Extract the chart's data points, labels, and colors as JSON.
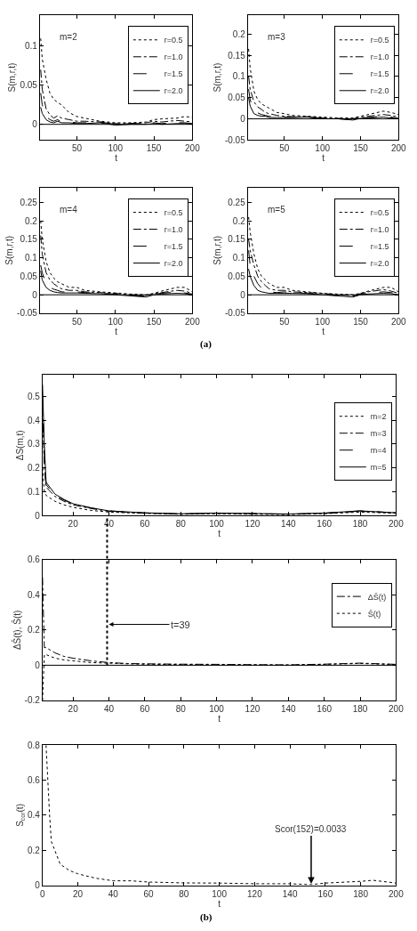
{
  "chart_data": [
    {
      "type": "line",
      "title": "m=2",
      "ylabel": "S(m,r,t)",
      "xlabel": "t",
      "xlim": [
        2,
        200
      ],
      "ylim": [
        -0.02,
        0.14
      ],
      "xticks": [
        50,
        100,
        150,
        200
      ],
      "yticks": [
        0,
        0.05,
        0.1
      ],
      "legend": "top right",
      "x": [
        3,
        5,
        10,
        15,
        20,
        25,
        30,
        40,
        50,
        60,
        80,
        100,
        120,
        140,
        150,
        160,
        180,
        190,
        200
      ],
      "series": [
        {
          "name": "r=0.5",
          "color": "#000000",
          "line_style": "dotted",
          "values": [
            0.11,
            0.084,
            0.058,
            0.04,
            0.032,
            0.028,
            0.025,
            0.015,
            0.01,
            0.008,
            0.004,
            0.002,
            0.002,
            0.003,
            0.006,
            0.007,
            0.008,
            0.01,
            0.009
          ]
        },
        {
          "name": "r=1.0",
          "color": "#000000",
          "line_style": "dashdot",
          "values": [
            0.07,
            0.045,
            0.02,
            0.012,
            0.008,
            0.011,
            0.008,
            0.006,
            0.004,
            0.004,
            0.003,
            0.001,
            0.001,
            0.002,
            0.004,
            0.003,
            0.005,
            0.004,
            0.003
          ]
        },
        {
          "name": "r=1.5",
          "color": "#000000",
          "line_style": "dashed",
          "values": [
            0.04,
            0.025,
            0.01,
            0.006,
            0.004,
            0.006,
            0.003,
            0.003,
            0.002,
            0.002,
            0.003,
            0.0,
            0.001,
            0.001,
            0.002,
            0.001,
            0.002,
            0.002,
            0.001
          ]
        },
        {
          "name": "r=2.0",
          "color": "#000000",
          "line_style": "solid",
          "values": [
            0.022,
            0.014,
            0.006,
            0.003,
            0.002,
            0.004,
            0.002,
            0.002,
            0.001,
            0.001,
            0.002,
            -0.001,
            0.0,
            0.0,
            0.001,
            0.0,
            0.001,
            0.001,
            0.0
          ]
        }
      ],
      "ref_lines": [
        {
          "axis": "y",
          "value": 0,
          "color": "#000000",
          "line_style": "solid"
        }
      ]
    },
    {
      "type": "line",
      "title": "m=3",
      "ylabel": "S(m,r,t)",
      "xlabel": "t",
      "xlim": [
        2,
        200
      ],
      "ylim": [
        -0.05,
        0.245
      ],
      "xticks": [
        50,
        100,
        150,
        200
      ],
      "yticks": [
        -0.05,
        0,
        0.05,
        0.1,
        0.15,
        0.2
      ],
      "legend": "top right",
      "x": [
        3,
        5,
        10,
        15,
        20,
        25,
        30,
        40,
        50,
        60,
        80,
        100,
        120,
        140,
        150,
        160,
        180,
        190,
        200
      ],
      "series": [
        {
          "name": "r=0.5",
          "color": "#000000",
          "line_style": "dotted",
          "values": [
            0.165,
            0.12,
            0.065,
            0.045,
            0.035,
            0.03,
            0.025,
            0.015,
            0.012,
            0.008,
            0.006,
            0.004,
            0.002,
            0.002,
            0.006,
            0.01,
            0.018,
            0.015,
            0.01
          ]
        },
        {
          "name": "r=1.0",
          "color": "#000000",
          "line_style": "dashdot",
          "values": [
            0.1,
            0.07,
            0.04,
            0.028,
            0.022,
            0.015,
            0.012,
            0.008,
            0.006,
            0.005,
            0.005,
            0.002,
            0.001,
            0.0,
            0.004,
            0.006,
            0.01,
            0.008,
            0.004
          ]
        },
        {
          "name": "r=1.5",
          "color": "#000000",
          "line_style": "dashed",
          "values": [
            0.07,
            0.045,
            0.02,
            0.014,
            0.01,
            0.008,
            0.006,
            0.005,
            0.004,
            0.004,
            0.005,
            0.001,
            0.0,
            -0.002,
            0.002,
            0.003,
            0.006,
            0.004,
            0.001
          ]
        },
        {
          "name": "r=2.0",
          "color": "#000000",
          "line_style": "solid",
          "values": [
            0.05,
            0.03,
            0.012,
            0.008,
            0.006,
            0.006,
            0.003,
            0.003,
            0.003,
            0.003,
            0.004,
            0.0,
            0.0,
            -0.003,
            0.001,
            0.002,
            0.004,
            0.002,
            0.0
          ]
        }
      ],
      "ref_lines": [
        {
          "axis": "y",
          "value": 0,
          "color": "#000000",
          "line_style": "solid"
        }
      ]
    },
    {
      "type": "line",
      "title": "m=4",
      "ylabel": "S(m,r,t)",
      "xlabel": "t",
      "xlim": [
        2,
        200
      ],
      "ylim": [
        -0.05,
        0.29
      ],
      "xticks": [
        50,
        100,
        150,
        200
      ],
      "yticks": [
        -0.05,
        0,
        0.05,
        0.1,
        0.15,
        0.2,
        0.25
      ],
      "legend": "top right",
      "x": [
        3,
        5,
        10,
        15,
        20,
        25,
        30,
        40,
        50,
        60,
        80,
        100,
        120,
        140,
        150,
        160,
        180,
        190,
        200
      ],
      "series": [
        {
          "name": "r=0.5",
          "color": "#000000",
          "line_style": "dotted",
          "values": [
            0.2,
            0.15,
            0.09,
            0.06,
            0.045,
            0.035,
            0.03,
            0.02,
            0.02,
            0.012,
            0.008,
            0.005,
            0.002,
            0.0,
            0.004,
            0.01,
            0.02,
            0.02,
            0.008
          ]
        },
        {
          "name": "r=1.0",
          "color": "#000000",
          "line_style": "dashdot",
          "values": [
            0.16,
            0.11,
            0.06,
            0.04,
            0.03,
            0.022,
            0.016,
            0.012,
            0.012,
            0.008,
            0.006,
            0.004,
            0.0,
            -0.002,
            0.003,
            0.006,
            0.012,
            0.01,
            0.004
          ]
        },
        {
          "name": "r=1.5",
          "color": "#000000",
          "line_style": "dashed",
          "values": [
            0.08,
            0.06,
            0.03,
            0.02,
            0.015,
            0.012,
            0.008,
            0.007,
            0.008,
            0.006,
            0.004,
            0.002,
            -0.002,
            -0.004,
            0.002,
            0.004,
            0.008,
            0.005,
            0.002
          ]
        },
        {
          "name": "r=2.0",
          "color": "#000000",
          "line_style": "solid",
          "values": [
            0.065,
            0.04,
            0.02,
            0.012,
            0.008,
            0.006,
            0.005,
            0.005,
            0.005,
            0.004,
            0.003,
            0.0,
            -0.003,
            -0.006,
            0.0,
            0.002,
            0.004,
            0.003,
            0.0
          ]
        }
      ],
      "ref_lines": [
        {
          "axis": "y",
          "value": 0,
          "color": "#000000",
          "line_style": "solid"
        }
      ]
    },
    {
      "type": "line",
      "title": "m=5",
      "ylabel": "S(m,r,t)",
      "xlabel": "t",
      "xlim": [
        2,
        200
      ],
      "ylim": [
        -0.05,
        0.29
      ],
      "xticks": [
        50,
        100,
        150,
        200
      ],
      "yticks": [
        -0.05,
        0,
        0.05,
        0.1,
        0.15,
        0.2,
        0.25
      ],
      "legend": "top right",
      "x": [
        3,
        5,
        10,
        15,
        20,
        25,
        30,
        40,
        50,
        60,
        80,
        100,
        120,
        140,
        150,
        160,
        180,
        190,
        200
      ],
      "series": [
        {
          "name": "r=0.5",
          "color": "#000000",
          "line_style": "dotted",
          "values": [
            0.21,
            0.17,
            0.11,
            0.07,
            0.05,
            0.04,
            0.03,
            0.02,
            0.02,
            0.012,
            0.008,
            0.004,
            0.002,
            0.0,
            0.004,
            0.01,
            0.02,
            0.02,
            0.008
          ]
        },
        {
          "name": "r=1.0",
          "color": "#000000",
          "line_style": "dashdot",
          "values": [
            0.15,
            0.12,
            0.08,
            0.05,
            0.035,
            0.025,
            0.016,
            0.012,
            0.012,
            0.008,
            0.006,
            0.004,
            0.0,
            -0.002,
            0.003,
            0.008,
            0.014,
            0.01,
            0.004
          ]
        },
        {
          "name": "r=1.5",
          "color": "#000000",
          "line_style": "dashed",
          "values": [
            0.12,
            0.08,
            0.05,
            0.03,
            0.018,
            0.012,
            0.008,
            0.006,
            0.008,
            0.006,
            0.004,
            0.002,
            -0.002,
            -0.004,
            0.002,
            0.004,
            0.008,
            0.006,
            0.002
          ]
        },
        {
          "name": "r=2.0",
          "color": "#000000",
          "line_style": "solid",
          "values": [
            0.07,
            0.05,
            0.025,
            0.012,
            0.008,
            0.006,
            0.004,
            0.004,
            0.004,
            0.004,
            0.003,
            0.0,
            -0.003,
            -0.006,
            0.0,
            0.002,
            0.004,
            0.003,
            0.0
          ]
        }
      ],
      "ref_lines": [
        {
          "axis": "y",
          "value": 0,
          "color": "#000000",
          "line_style": "solid"
        }
      ],
      "annotations": [
        "(a)"
      ]
    },
    {
      "type": "line",
      "ylabel": "ΔS(m,t)",
      "xlabel": "t",
      "xlim": [
        3,
        200
      ],
      "ylim": [
        0,
        0.59
      ],
      "xticks": [
        20,
        40,
        60,
        80,
        100,
        120,
        140,
        160,
        180,
        200
      ],
      "yticks": [
        0,
        0.1,
        0.2,
        0.3,
        0.4,
        0.5
      ],
      "legend": "top right",
      "x": [
        3,
        4,
        5,
        10,
        15,
        20,
        30,
        40,
        50,
        60,
        80,
        100,
        120,
        140,
        160,
        180,
        200
      ],
      "series": [
        {
          "name": "m=2",
          "color": "#000000",
          "line_style": "dotted",
          "values": [
            0.2,
            0.1,
            0.085,
            0.06,
            0.045,
            0.035,
            0.022,
            0.015,
            0.012,
            0.01,
            0.006,
            0.008,
            0.006,
            0.005,
            0.008,
            0.015,
            0.01
          ]
        },
        {
          "name": "m=3",
          "color": "#000000",
          "line_style": "dashdot",
          "values": [
            0.45,
            0.2,
            0.12,
            0.08,
            0.06,
            0.045,
            0.03,
            0.018,
            0.014,
            0.01,
            0.007,
            0.01,
            0.008,
            0.006,
            0.01,
            0.018,
            0.012
          ]
        },
        {
          "name": "m=4",
          "color": "#000000",
          "line_style": "dashed",
          "values": [
            0.5,
            0.25,
            0.13,
            0.085,
            0.065,
            0.048,
            0.032,
            0.02,
            0.015,
            0.011,
            0.007,
            0.01,
            0.009,
            0.006,
            0.01,
            0.02,
            0.012
          ]
        },
        {
          "name": "m=5",
          "color": "#000000",
          "line_style": "solid",
          "values": [
            0.55,
            0.3,
            0.14,
            0.09,
            0.068,
            0.05,
            0.033,
            0.02,
            0.016,
            0.012,
            0.008,
            0.011,
            0.009,
            0.007,
            0.011,
            0.02,
            0.012
          ]
        }
      ]
    },
    {
      "type": "line",
      "ylabel": "ΔS̄(t), S̄(t)",
      "xlabel": "t",
      "xlim": [
        3,
        200
      ],
      "ylim": [
        -0.2,
        0.6
      ],
      "xticks": [
        20,
        40,
        60,
        80,
        100,
        120,
        140,
        160,
        180,
        200
      ],
      "yticks": [
        -0.2,
        0,
        0.2,
        0.4,
        0.6
      ],
      "legend": "top right",
      "x": [
        3,
        4,
        5,
        10,
        15,
        20,
        30,
        40,
        50,
        60,
        80,
        100,
        120,
        140,
        160,
        180,
        200
      ],
      "series": [
        {
          "name": "ΔS̄(t)",
          "color": "#000000",
          "line_style": "dashdot",
          "values": [
            0.5,
            0.1,
            0.1,
            0.07,
            0.05,
            0.04,
            0.025,
            0.015,
            0.01,
            0.008,
            0.006,
            0.005,
            0.003,
            0.002,
            0.006,
            0.012,
            0.005
          ]
        },
        {
          "name": "S̄(t)",
          "color": "#000000",
          "line_style": "dotted",
          "values": [
            -0.2,
            0.06,
            0.06,
            0.04,
            0.03,
            0.025,
            0.015,
            0.012,
            0.008,
            0.006,
            0.004,
            0.003,
            0.002,
            0.001,
            0.005,
            0.01,
            0.004
          ]
        }
      ],
      "ref_lines": [
        {
          "axis": "y",
          "value": 0,
          "color": "#000000",
          "line_style": "solid"
        },
        {
          "axis": "x",
          "value": 39,
          "label": "t=39",
          "color": "#000000",
          "line_style": "dotted"
        }
      ]
    },
    {
      "type": "line",
      "ylabel": "S$_{cor}$(t)",
      "xlabel": "t",
      "xlim": [
        0,
        200
      ],
      "ylim": [
        0,
        0.8
      ],
      "xticks": [
        0,
        20,
        40,
        60,
        80,
        100,
        120,
        140,
        160,
        180,
        200
      ],
      "yticks": [
        0,
        0.2,
        0.4,
        0.6,
        0.8
      ],
      "x": [
        2,
        3,
        4,
        5,
        10,
        15,
        20,
        30,
        40,
        50,
        60,
        80,
        100,
        120,
        140,
        152,
        160,
        180,
        187,
        200
      ],
      "series": [
        {
          "color": "#000000",
          "line_style": "dotted",
          "values": [
            0.8,
            0.6,
            0.4,
            0.25,
            0.12,
            0.085,
            0.065,
            0.04,
            0.025,
            0.025,
            0.018,
            0.013,
            0.012,
            0.008,
            0.008,
            0.0033,
            0.012,
            0.022,
            0.028,
            0.012
          ]
        }
      ],
      "annotations": [
        {
          "text": "Scor(152)=0.0033",
          "x": 152,
          "y": 0.0033
        },
        "(b)"
      ]
    }
  ]
}
